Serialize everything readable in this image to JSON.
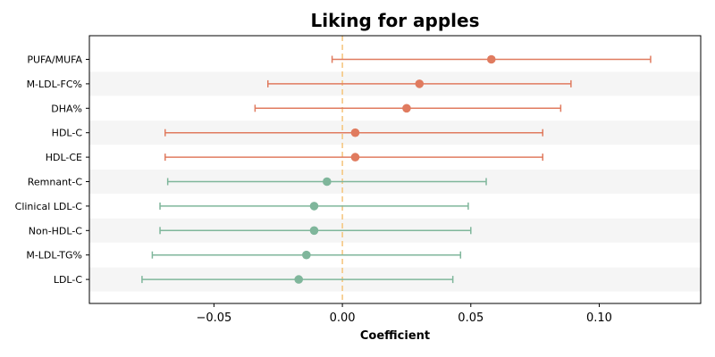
{
  "chart_data": {
    "type": "forest",
    "title": "Liking for apples",
    "xlabel": "Coefficient",
    "ylabel": "",
    "xlim": [
      -0.0985,
      0.1395
    ],
    "x_ticks": [
      -0.05,
      0.0,
      0.05,
      0.1
    ],
    "x_tick_labels": [
      "−0.05",
      "0.00",
      "0.05",
      "0.10"
    ],
    "reference_line": 0.0,
    "grid": false,
    "colors": {
      "positive": "#E07B5F",
      "negative": "#7FB69B",
      "reference": "#F5C37A",
      "band": "#F5F5F5"
    },
    "categories": [
      "PUFA/MUFA",
      "M-LDL-FC%",
      "DHA%",
      "HDL-C",
      "HDL-CE",
      "Remnant-C",
      "Clinical LDL-C",
      "Non-HDL-C",
      "M-LDL-TG%",
      "LDL-C"
    ],
    "estimates": [
      0.058,
      0.03,
      0.025,
      0.005,
      0.005,
      -0.006,
      -0.011,
      -0.011,
      -0.014,
      -0.017
    ],
    "lower": [
      -0.004,
      -0.029,
      -0.034,
      -0.069,
      -0.069,
      -0.068,
      -0.071,
      -0.071,
      -0.074,
      -0.078
    ],
    "upper": [
      0.12,
      0.089,
      0.085,
      0.078,
      0.078,
      0.056,
      0.049,
      0.05,
      0.046,
      0.043
    ]
  }
}
